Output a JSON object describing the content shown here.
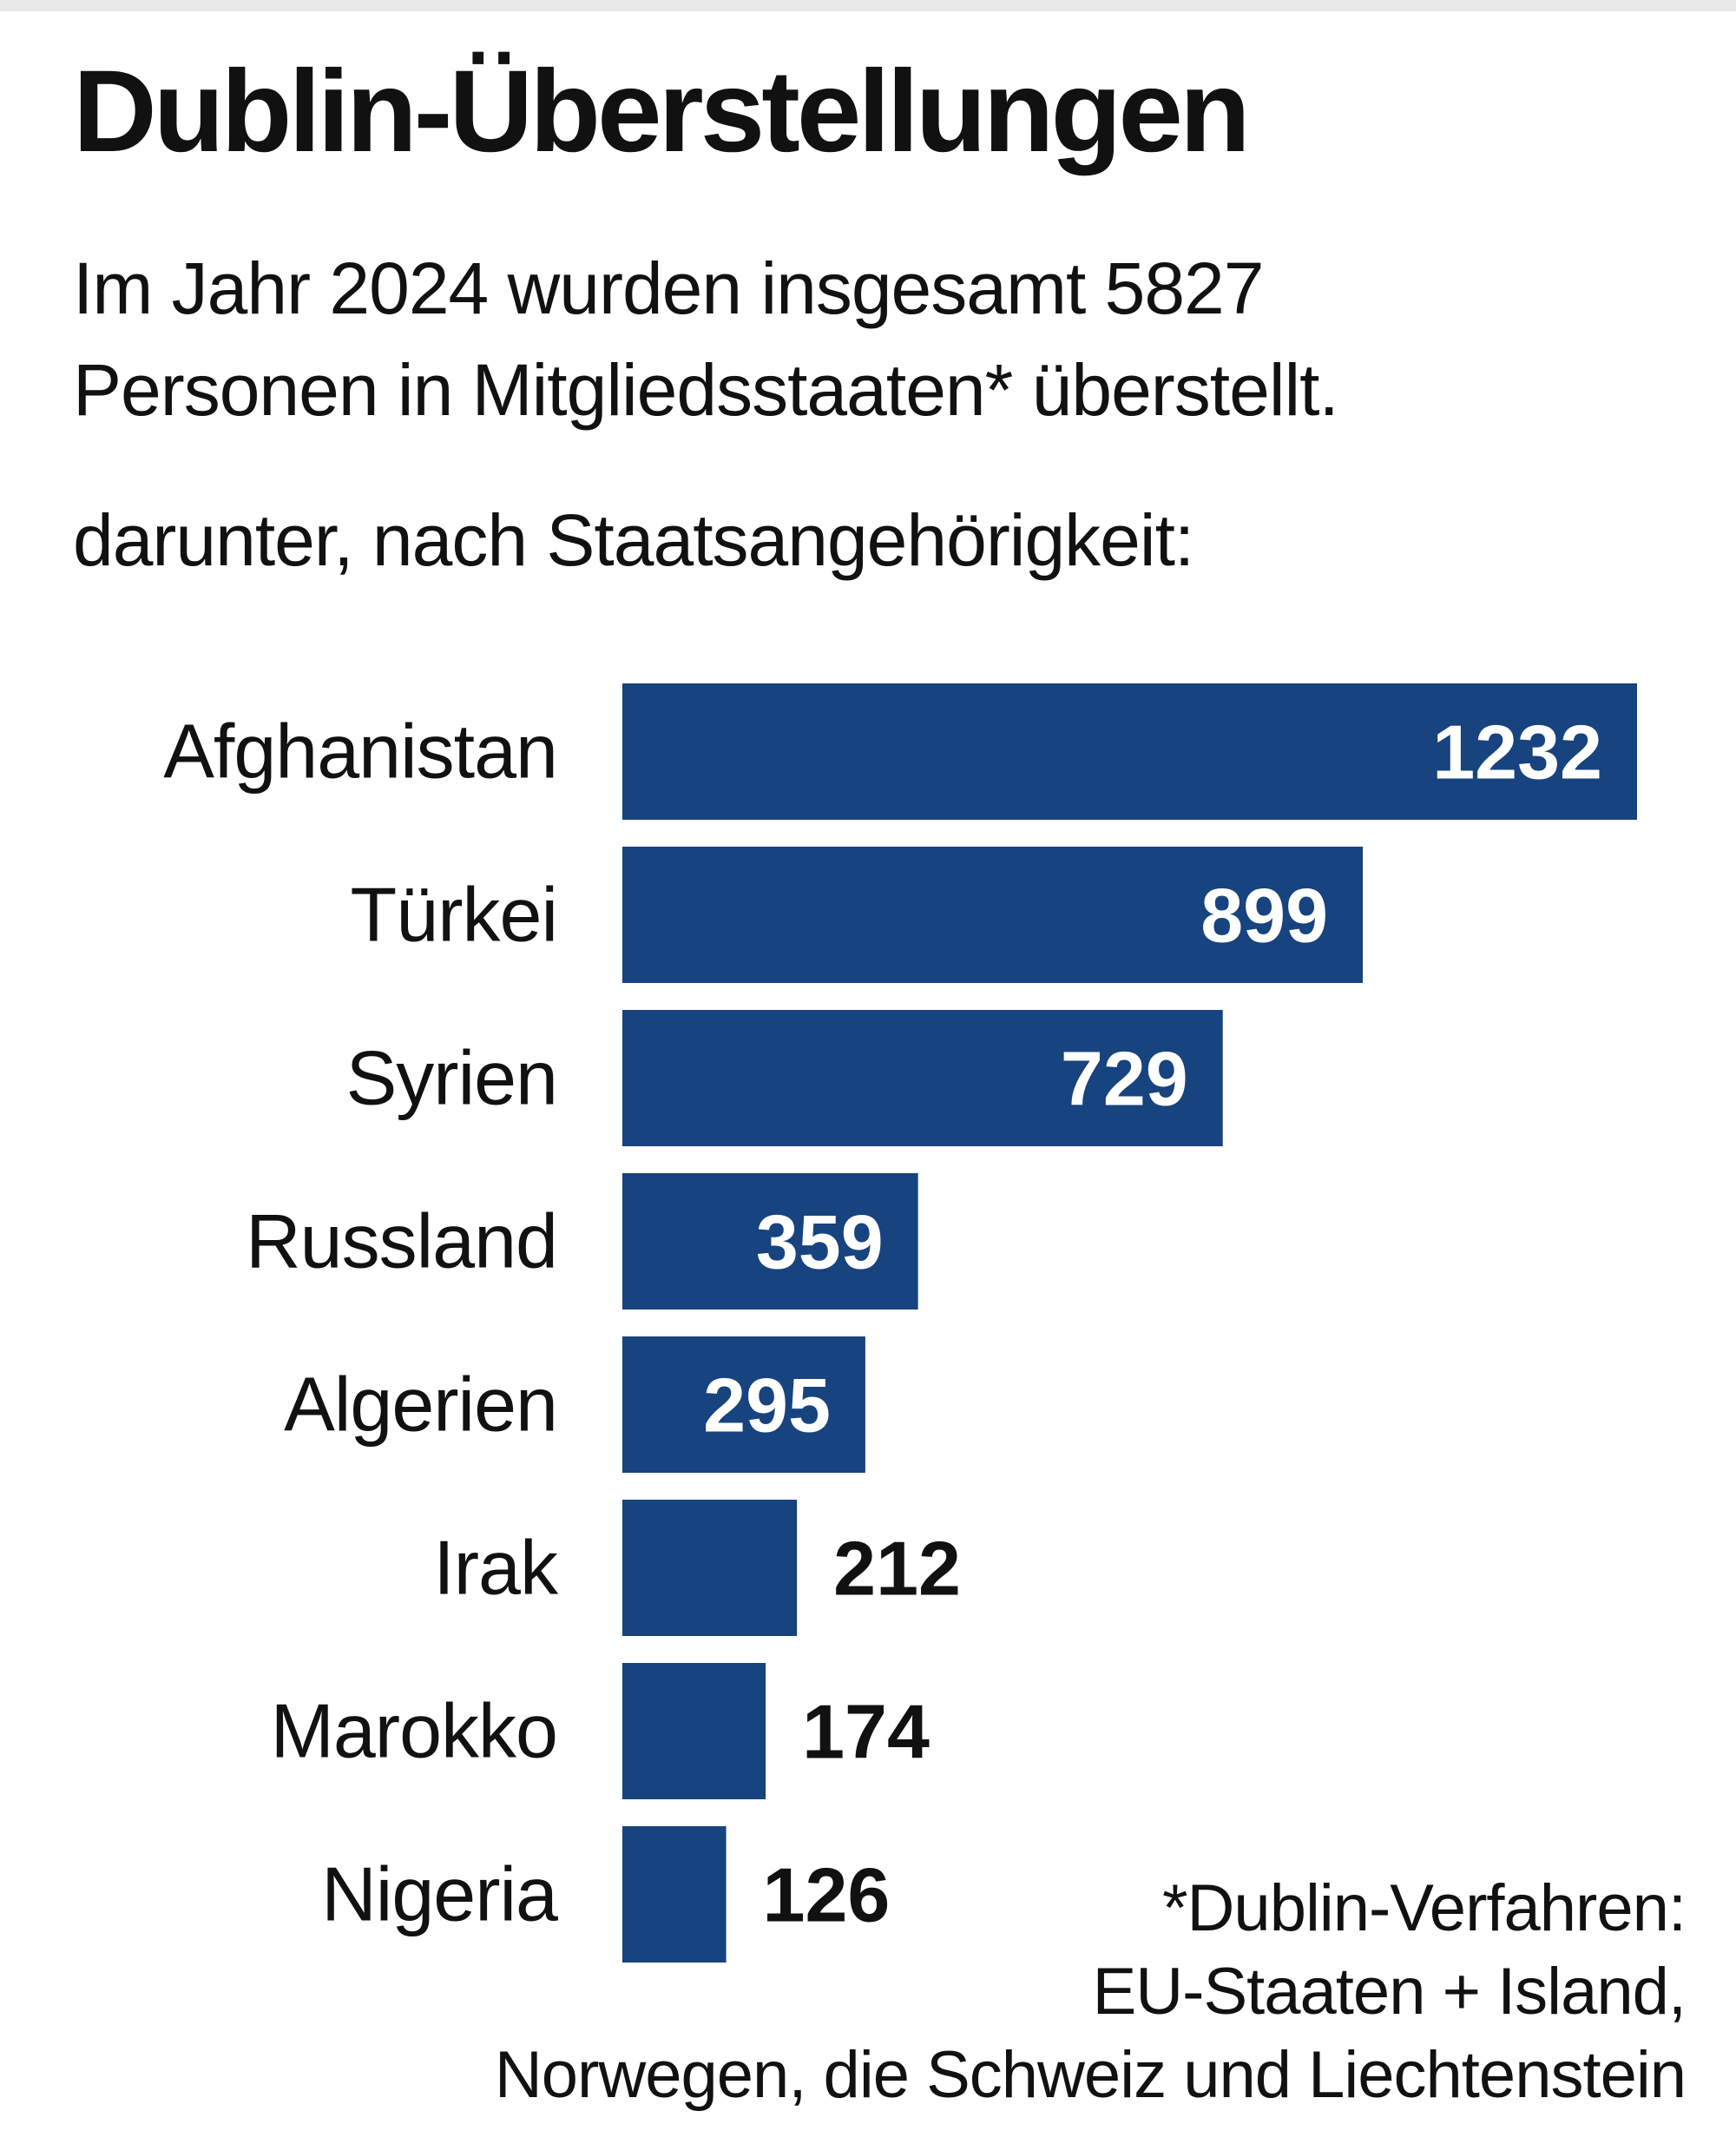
{
  "title": "Dublin-Überstellungen",
  "subtitle_line1": "Im Jahr 2024 wurden insgesamt 5827",
  "subtitle_line2": "Personen in Mitgliedsstaaten* überstellt.",
  "subtitle_line3": "darunter, nach Staatsangehörigkeit:",
  "footnote": [
    "*Dublin-Verfahren:",
    "EU-Staaten + Island,",
    "Norwegen, die Schweiz und Liechtenstein"
  ],
  "colors": {
    "bar": "#17437f",
    "topbar": "#e8e8e8"
  },
  "chart_data": {
    "type": "bar",
    "orientation": "horizontal",
    "categories": [
      "Afghanistan",
      "Türkei",
      "Syrien",
      "Russland",
      "Algerien",
      "Irak",
      "Marokko",
      "Nigeria"
    ],
    "values": [
      1232,
      899,
      729,
      359,
      295,
      212,
      174,
      126
    ],
    "data_labels": [
      "1232",
      "899",
      "729",
      "359",
      "295",
      "212",
      "174",
      "126"
    ],
    "grid": false,
    "axes_visible": false
  }
}
